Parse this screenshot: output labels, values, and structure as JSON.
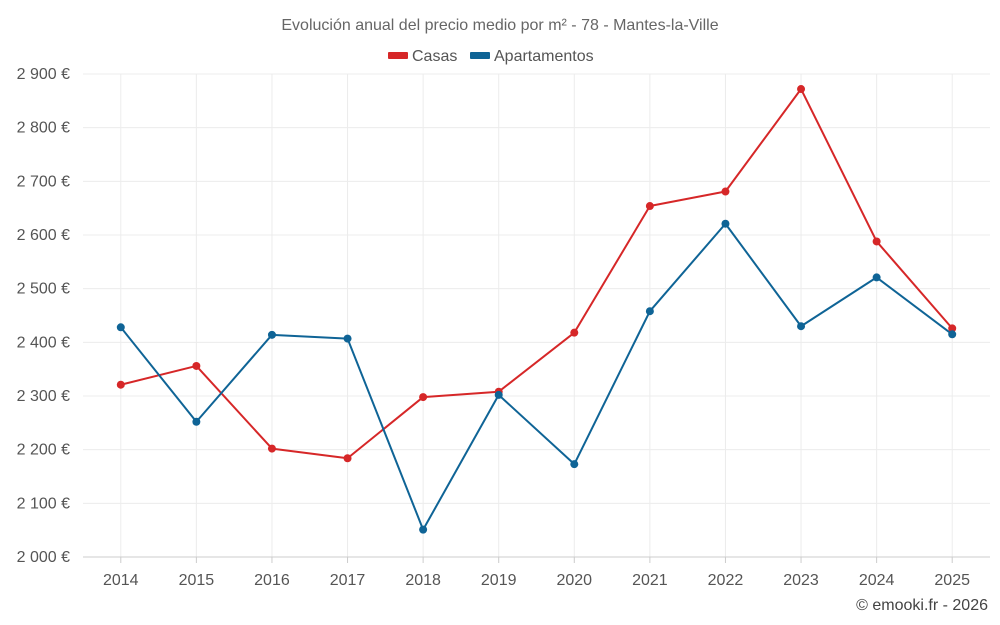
{
  "chart_data": {
    "type": "line",
    "title": "Evolución anual del precio medio por m² - 78 - Mantes-la-Ville",
    "xlabel": "",
    "ylabel": "",
    "categories": [
      "2014",
      "2015",
      "2016",
      "2017",
      "2018",
      "2019",
      "2020",
      "2021",
      "2022",
      "2023",
      "2024",
      "2025"
    ],
    "ylim": [
      2000,
      2900
    ],
    "yticks": [
      2000,
      2100,
      2200,
      2300,
      2400,
      2500,
      2600,
      2700,
      2800,
      2900
    ],
    "ytick_labels": [
      "2 000 €",
      "2 100 €",
      "2 200 €",
      "2 300 €",
      "2 400 €",
      "2 500 €",
      "2 600 €",
      "2 700 €",
      "2 800 €",
      "2 900 €"
    ],
    "grid": true,
    "legend_position": "top-center",
    "series": [
      {
        "name": "Casas",
        "color": "#d62728",
        "values": [
          2321,
          2356,
          2202,
          2184,
          2298,
          2308,
          2418,
          2654,
          2681,
          2872,
          2588,
          2426
        ]
      },
      {
        "name": "Apartamentos",
        "color": "#0f6496",
        "values": [
          2428,
          2252,
          2414,
          2407,
          2051,
          2302,
          2173,
          2458,
          2621,
          2430,
          2521,
          2415
        ]
      }
    ],
    "credit": "© emooki.fr - 2026"
  }
}
